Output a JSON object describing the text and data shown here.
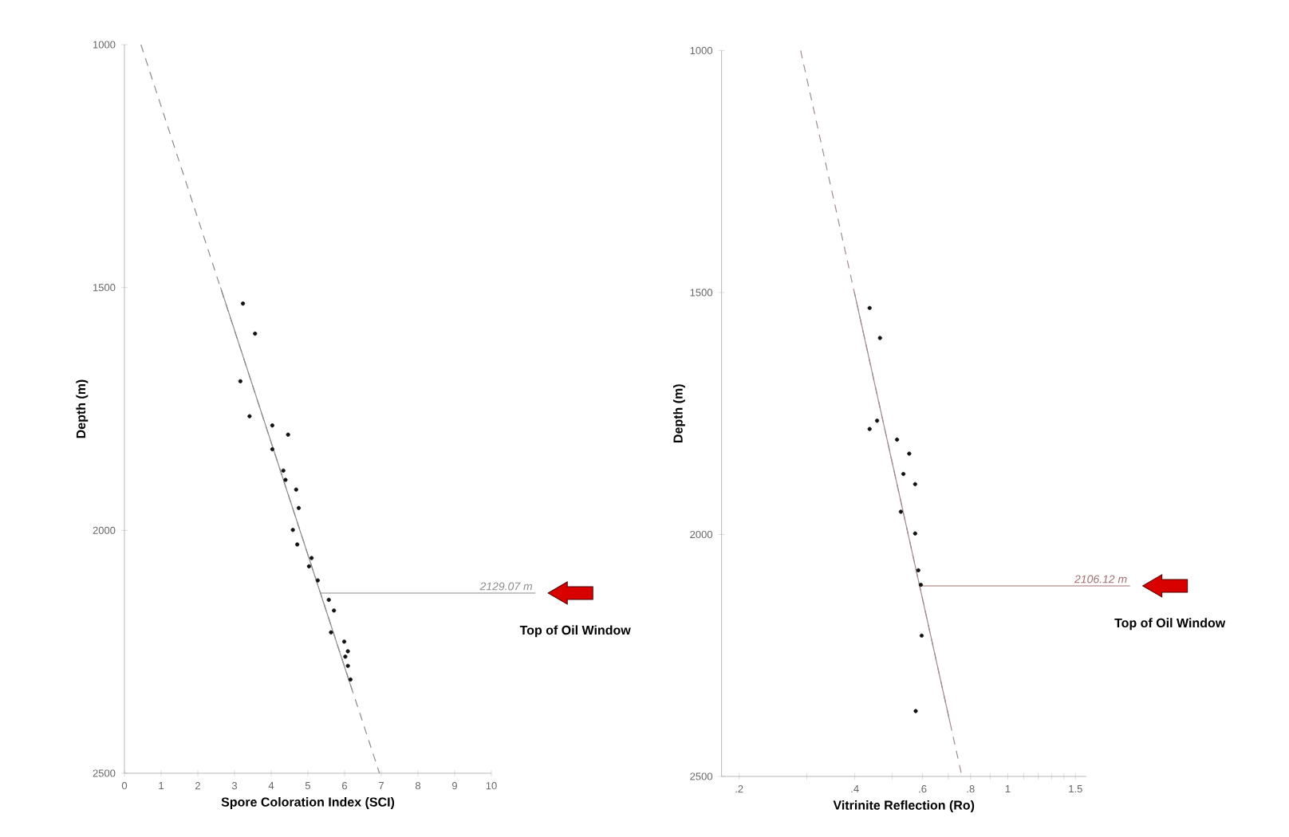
{
  "chart_data": [
    {
      "type": "scatter",
      "xlabel": "Spore Coloration Index (SCI)",
      "ylabel": "Depth (m)",
      "xlim": [
        0,
        10
      ],
      "ylim": [
        2500,
        1000
      ],
      "xticks": [
        0,
        1,
        2,
        3,
        4,
        5,
        6,
        7,
        8,
        9,
        10
      ],
      "yticks": [
        1000,
        1500,
        2000,
        2500
      ],
      "series": [
        {
          "marker": "circle",
          "color": "#111111",
          "x": [
            3.23,
            3.56,
            3.16,
            3.41,
            4.03,
            4.46,
            4.03,
            4.33,
            4.39,
            4.68,
            4.75,
            4.59,
            4.71,
            5.1,
            5.03,
            5.27,
            5.57,
            5.71,
            5.63,
            5.99,
            6.09,
            6.02,
            6.09,
            6.16
          ],
          "values": [
            1533,
            1595,
            1693,
            1765,
            1784,
            1803,
            1833,
            1877,
            1896,
            1916,
            1954,
            1999,
            2029,
            2057,
            2074,
            2103,
            2143,
            2165,
            2210,
            2229,
            2249,
            2260,
            2279,
            2307
          ]
        },
        {
          "type": "line",
          "line_style": "dashed",
          "color": "#8c8c8c",
          "x": [
            0.45,
            6.95
          ],
          "values": [
            1000,
            2500
          ]
        },
        {
          "type": "line",
          "line_style": "solid",
          "color": "#8c8c8c",
          "x": [
            2.62,
            6.21
          ],
          "values": [
            1500,
            2330
          ]
        }
      ],
      "ref_lines": [
        {
          "axis": "y",
          "value": 2129.07,
          "label": "2129.07 m",
          "color": "#8c8c8c"
        }
      ],
      "annotations": [
        "Top of Oil Window"
      ]
    },
    {
      "type": "scatter",
      "xlabel": "Vitrinite Reflection (Ro)",
      "ylabel": "Depth (m)",
      "log": "x",
      "xlim": [
        0.18,
        1.6
      ],
      "ylim": [
        2500,
        1000
      ],
      "xticks": [
        {
          "value": 0.2,
          "label": ".2"
        },
        {
          "value": 0.3,
          "label": null
        },
        {
          "value": 0.4,
          "label": ".4"
        },
        {
          "value": 0.5,
          "label": null
        },
        {
          "value": 0.6,
          "label": ".6"
        },
        {
          "value": 0.7,
          "label": null
        },
        {
          "value": 0.8,
          "label": ".8"
        },
        {
          "value": 0.9,
          "label": null
        },
        {
          "value": 1,
          "label": "1"
        },
        {
          "value": 1.1,
          "label": null
        },
        {
          "value": 1.2,
          "label": null
        },
        {
          "value": 1.3,
          "label": null
        },
        {
          "value": 1.4,
          "label": null
        },
        {
          "value": 1.5,
          "label": "1.5"
        }
      ],
      "yticks": [
        1000,
        1500,
        2000,
        2500
      ],
      "series": [
        {
          "marker": "circle",
          "color": "#111111",
          "x": [
            0.437,
            0.465,
            0.457,
            0.437,
            0.515,
            0.554,
            0.535,
            0.574,
            0.527,
            0.574,
            0.585,
            0.594,
            0.597,
            0.576
          ],
          "values": [
            1532,
            1594,
            1765,
            1782,
            1804,
            1833,
            1875,
            1896,
            1953,
            1998,
            2074,
            2104,
            2209,
            2365
          ]
        },
        {
          "type": "line",
          "line_style": "dashed",
          "color": "#a08c8c",
          "x": [
            0.289,
            0.76
          ],
          "values": [
            1000,
            2500
          ]
        },
        {
          "type": "line",
          "line_style": "solid",
          "color": "#a08c8c",
          "x": [
            0.399,
            0.708
          ],
          "values": [
            1500,
            2390
          ]
        }
      ],
      "ref_lines": [
        {
          "axis": "y",
          "value": 2106.12,
          "label": "2106.12 m",
          "color": "#a07070"
        }
      ],
      "annotations": [
        "Top of Oil Window"
      ]
    }
  ]
}
